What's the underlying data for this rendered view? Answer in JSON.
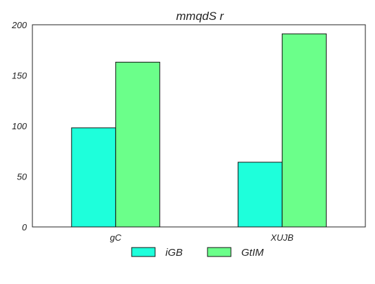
{
  "chart_data": {
    "type": "bar",
    "title": "mmqdS r",
    "xlabel": "",
    "ylabel": "",
    "categories": [
      "gC",
      "XUJB"
    ],
    "series": [
      {
        "name": "iGB",
        "values": [
          98,
          64
        ],
        "color": "#1effdb"
      },
      {
        "name": "GtIM",
        "values": [
          163,
          191
        ],
        "color": "#6bff8a"
      }
    ],
    "ylim": [
      0,
      200
    ],
    "yticks": [
      0,
      50,
      100,
      150,
      200
    ],
    "grid": false,
    "legend": "bottom-center"
  }
}
